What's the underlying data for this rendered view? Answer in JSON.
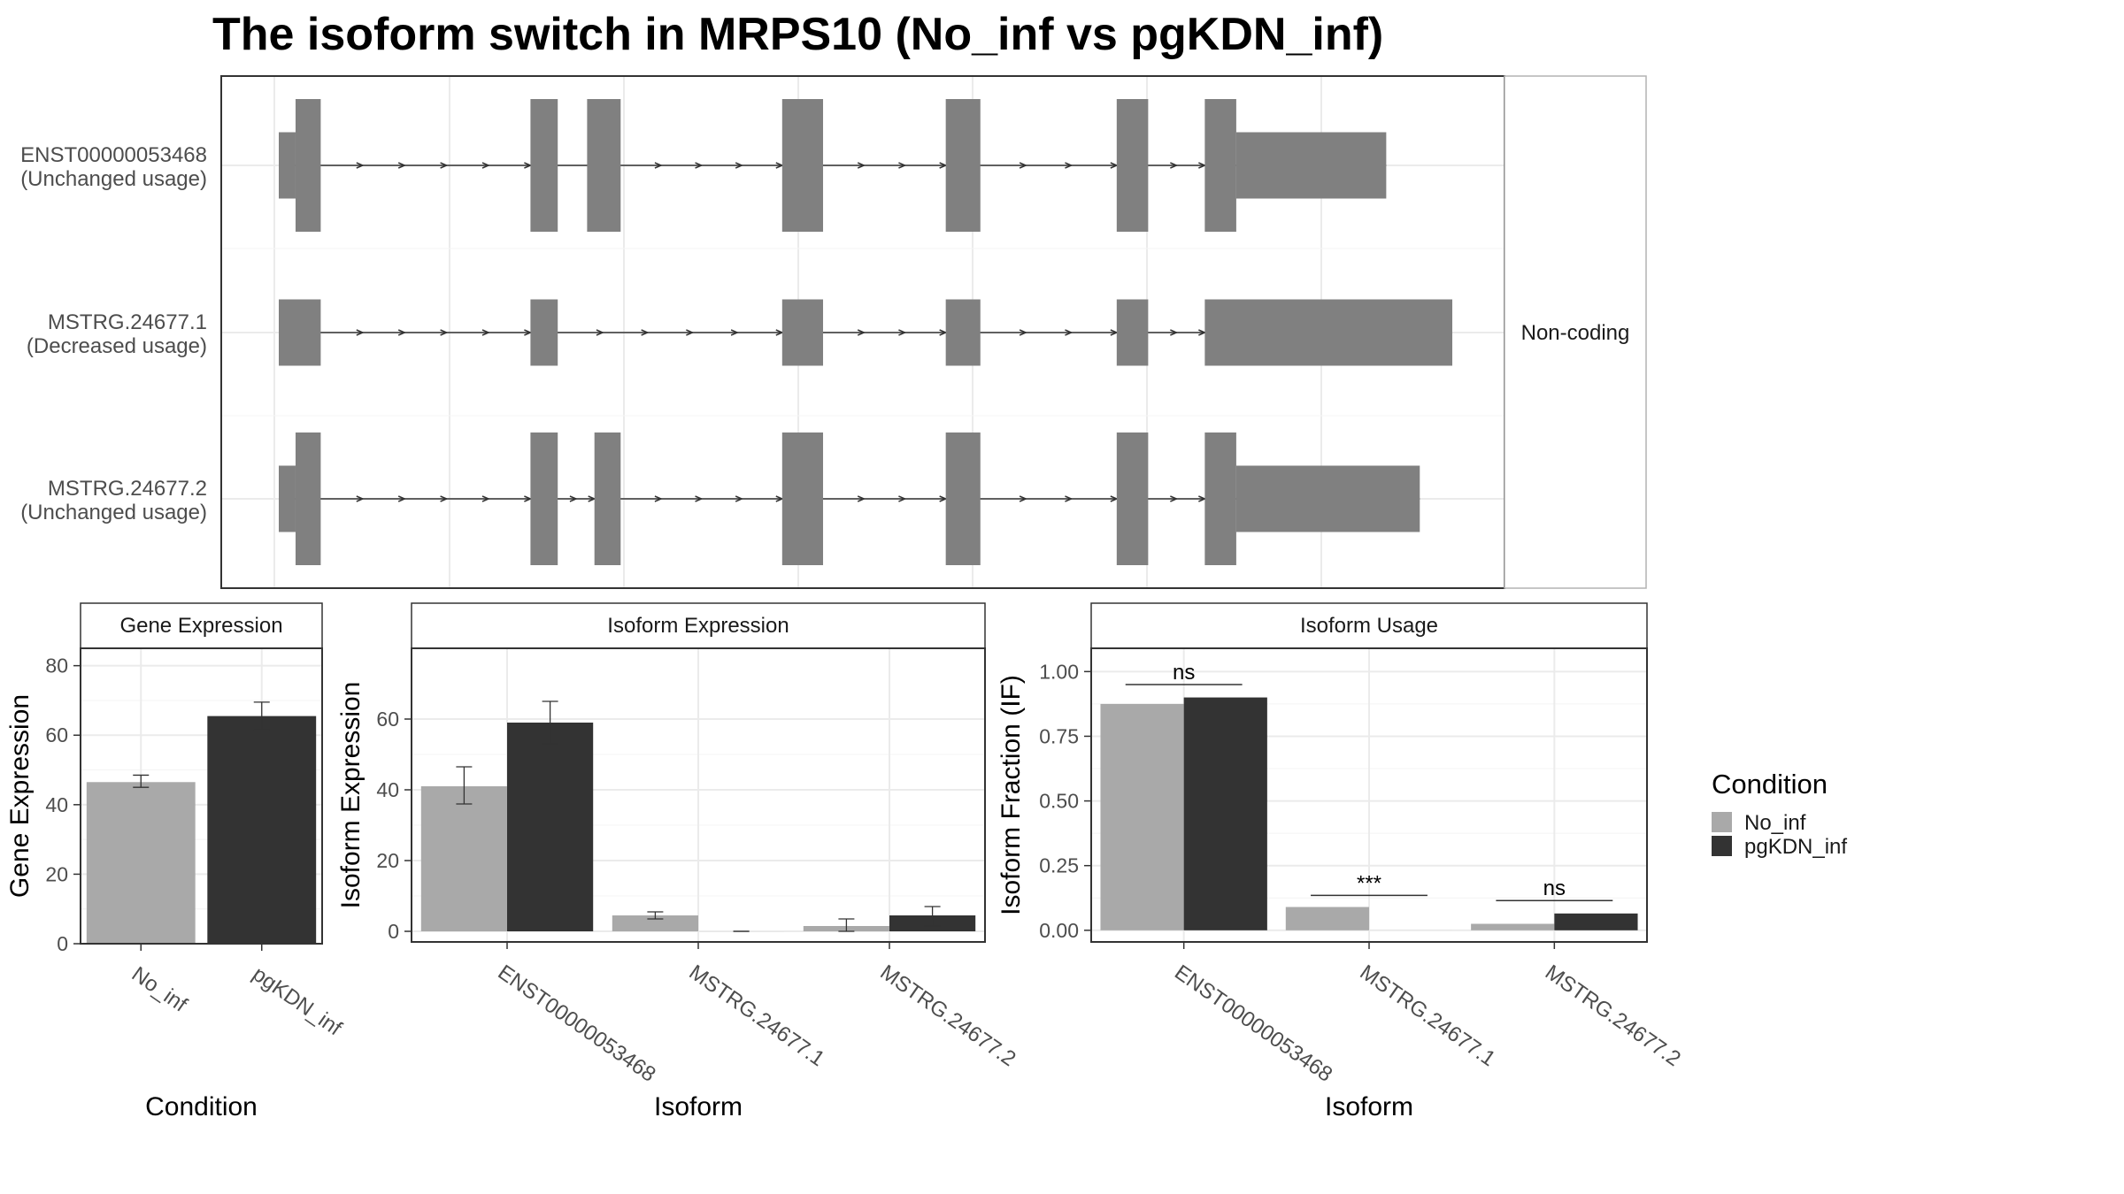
{
  "title": "The isoform switch in MRPS10 (No_inf vs pgKDN_inf)",
  "colors": {
    "no_inf": "#a9a9a9",
    "pgkdn_inf": "#333333",
    "exon": "#808080",
    "grid": "#ebebeb",
    "border": "#333333",
    "strip_border": "#b3b3b3"
  },
  "chart_data": [
    {
      "type": "structure",
      "strip_label": "Non-coding",
      "isoforms": [
        {
          "id": "ENST00000053468",
          "usage": "(Unchanged usage)",
          "exons": [
            {
              "start": 0.0,
              "end": 0.016,
              "kind": "utr"
            },
            {
              "start": 0.016,
              "end": 0.04,
              "kind": "cds"
            },
            {
              "start": 0.24,
              "end": 0.266,
              "kind": "cds"
            },
            {
              "start": 0.294,
              "end": 0.326,
              "kind": "cds"
            },
            {
              "start": 0.48,
              "end": 0.519,
              "kind": "cds"
            },
            {
              "start": 0.636,
              "end": 0.669,
              "kind": "cds"
            },
            {
              "start": 0.799,
              "end": 0.829,
              "kind": "cds"
            },
            {
              "start": 0.883,
              "end": 0.913,
              "kind": "cds"
            },
            {
              "start": 0.913,
              "end": 1.056,
              "kind": "utr"
            }
          ]
        },
        {
          "id": "MSTRG.24677.1",
          "usage": "(Decreased usage)",
          "exons": [
            {
              "start": 0.0,
              "end": 0.04,
              "kind": "nc"
            },
            {
              "start": 0.24,
              "end": 0.266,
              "kind": "nc"
            },
            {
              "start": 0.48,
              "end": 0.519,
              "kind": "nc"
            },
            {
              "start": 0.636,
              "end": 0.669,
              "kind": "nc"
            },
            {
              "start": 0.799,
              "end": 0.829,
              "kind": "nc"
            },
            {
              "start": 0.883,
              "end": 1.119,
              "kind": "nc"
            }
          ]
        },
        {
          "id": "MSTRG.24677.2",
          "usage": "(Unchanged usage)",
          "exons": [
            {
              "start": 0.0,
              "end": 0.016,
              "kind": "utr"
            },
            {
              "start": 0.016,
              "end": 0.04,
              "kind": "cds"
            },
            {
              "start": 0.24,
              "end": 0.266,
              "kind": "cds"
            },
            {
              "start": 0.301,
              "end": 0.326,
              "kind": "cds"
            },
            {
              "start": 0.48,
              "end": 0.519,
              "kind": "cds"
            },
            {
              "start": 0.636,
              "end": 0.669,
              "kind": "cds"
            },
            {
              "start": 0.799,
              "end": 0.829,
              "kind": "cds"
            },
            {
              "start": 0.883,
              "end": 0.913,
              "kind": "cds"
            },
            {
              "start": 0.913,
              "end": 1.088,
              "kind": "utr"
            }
          ]
        }
      ]
    },
    {
      "type": "bar",
      "title": "Gene Expression",
      "xlabel": "Condition",
      "ylabel": "Gene Expression",
      "ylim": [
        0,
        85
      ],
      "yticks": [
        0,
        20,
        40,
        60,
        80
      ],
      "categories": [
        "No_inf",
        "pgKDN_inf"
      ],
      "values": [
        46.5,
        65.5
      ],
      "errors": [
        [
          45,
          48.5
        ],
        [
          61.5,
          69.5
        ]
      ]
    },
    {
      "type": "bar",
      "title": "Isoform Expression",
      "xlabel": "Isoform",
      "ylabel": "Isoform Expression",
      "ylim": [
        -3,
        80
      ],
      "yticks": [
        0,
        20,
        40,
        60
      ],
      "categories": [
        "ENST00000053468",
        "MSTRG.24677.1",
        "MSTRG.24677.2"
      ],
      "series": [
        {
          "name": "No_inf",
          "values": [
            41,
            4.5,
            1.5
          ],
          "errors": [
            [
              36,
              46.5
            ],
            [
              3.5,
              5.5
            ],
            [
              0,
              3.5
            ]
          ]
        },
        {
          "name": "pgKDN_inf",
          "values": [
            59,
            0,
            4.5
          ],
          "errors": [
            [
              53,
              65
            ],
            [
              0,
              0
            ],
            [
              1.5,
              7
            ]
          ]
        }
      ]
    },
    {
      "type": "bar",
      "title": "Isoform Usage",
      "xlabel": "Isoform",
      "ylabel": "Isoform Fraction (IF)",
      "ylim": [
        -0.045,
        1.09
      ],
      "yticks": [
        "0.00",
        "0.25",
        "0.50",
        "0.75",
        "1.00"
      ],
      "categories": [
        "ENST00000053468",
        "MSTRG.24677.1",
        "MSTRG.24677.2"
      ],
      "series": [
        {
          "name": "No_inf",
          "values": [
            0.875,
            0.09,
            0.025
          ]
        },
        {
          "name": "pgKDN_inf",
          "values": [
            0.9,
            0.0,
            0.065
          ]
        }
      ],
      "significance": [
        {
          "category": "ENST00000053468",
          "label": "ns",
          "y": 0.95
        },
        {
          "category": "MSTRG.24677.1",
          "label": "***",
          "y": 0.135
        },
        {
          "category": "MSTRG.24677.2",
          "label": "ns",
          "y": 0.115
        }
      ]
    }
  ],
  "legend": {
    "title": "Condition",
    "items": [
      "No_inf",
      "pgKDN_inf"
    ],
    "position": "right"
  }
}
